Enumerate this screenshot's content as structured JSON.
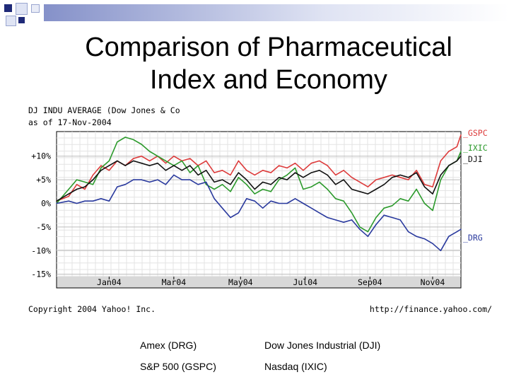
{
  "slide": {
    "title_line1": "Comparison of Pharmaceutical",
    "title_line2": "Index and Economy"
  },
  "legend_explain": [
    [
      "Amex (DRG)",
      "Dow Jones Industrial (DJI)"
    ],
    [
      "S&P 500 (GSPC)",
      "Nasdaq (IXIC)"
    ]
  ],
  "chart_data": {
    "type": "line",
    "header_line1": "DJ INDU AVERAGE (Dow Jones & Co",
    "header_line2": "as of 17-Nov-2004",
    "footer_left": "Copyright 2004 Yahoo! Inc.",
    "footer_right": "http://finance.yahoo.com/",
    "y_ticks": [
      {
        "v": 10,
        "label": "+10%"
      },
      {
        "v": 5,
        "label": "+5%"
      },
      {
        "v": 0,
        "label": "0%"
      },
      {
        "v": -5,
        "label": "-5%"
      },
      {
        "v": -10,
        "label": "-10%"
      },
      {
        "v": -15,
        "label": "-15%"
      }
    ],
    "ylim": [
      -15.5,
      15.2
    ],
    "xlim": [
      0,
      100
    ],
    "x_ticks": [
      {
        "x": 13,
        "label": "Jan04"
      },
      {
        "x": 29,
        "label": "Mar04"
      },
      {
        "x": 45.5,
        "label": "May04"
      },
      {
        "x": 61.5,
        "label": "Jul04"
      },
      {
        "x": 77.5,
        "label": "Sep04"
      },
      {
        "x": 93,
        "label": "Nov04"
      }
    ],
    "series": [
      {
        "name": "GSPC",
        "label": "_GSPC",
        "color": "#dd3b3b",
        "x": [
          0,
          3,
          5,
          7,
          9,
          11,
          13,
          15,
          17,
          19,
          21,
          23,
          25,
          27,
          29,
          31,
          33,
          35,
          37,
          39,
          41,
          43,
          45,
          47,
          49,
          51,
          53,
          55,
          57,
          59,
          61,
          63,
          65,
          67,
          69,
          71,
          73,
          75,
          77,
          79,
          81,
          83,
          85,
          87,
          89,
          91,
          93,
          95,
          97,
          99,
          100
        ],
        "y": [
          0.5,
          1.5,
          4,
          3,
          6,
          8,
          7,
          9,
          8,
          9.5,
          10,
          9,
          10,
          8.5,
          10,
          9,
          9.5,
          8,
          9,
          6.5,
          7,
          6,
          9,
          7,
          6,
          7,
          6.5,
          8,
          7.5,
          8.5,
          7,
          8.5,
          9,
          8,
          6,
          7,
          5.5,
          4.5,
          3.5,
          5,
          5.5,
          6,
          5.5,
          5,
          7,
          4,
          3.5,
          9,
          11,
          12,
          14.5
        ]
      },
      {
        "name": "IXIC",
        "label": "_IXIC",
        "color": "#2c9a2c",
        "x": [
          0,
          3,
          5,
          7,
          9,
          11,
          13,
          15,
          17,
          19,
          21,
          23,
          25,
          27,
          29,
          31,
          33,
          35,
          37,
          39,
          41,
          43,
          45,
          47,
          49,
          51,
          53,
          55,
          57,
          59,
          61,
          63,
          65,
          67,
          69,
          71,
          73,
          75,
          77,
          79,
          81,
          83,
          85,
          87,
          89,
          91,
          93,
          95,
          97,
          99,
          100
        ],
        "y": [
          0,
          3,
          5,
          4.5,
          4,
          7.5,
          9,
          13,
          14,
          13.5,
          12.5,
          11,
          10,
          9,
          8,
          9,
          6.5,
          8,
          4,
          3,
          4,
          2.5,
          5.5,
          4,
          2,
          3,
          2.5,
          5,
          6,
          7.5,
          3,
          3.5,
          4.5,
          3,
          1,
          0.5,
          -2,
          -5,
          -6,
          -3,
          -1,
          -0.5,
          1,
          0.5,
          3,
          0,
          -1.5,
          5,
          8,
          9,
          11
        ]
      },
      {
        "name": "DJI",
        "label": "_DJI",
        "color": "#111111",
        "x": [
          0,
          3,
          5,
          7,
          9,
          11,
          13,
          15,
          17,
          19,
          21,
          23,
          25,
          27,
          29,
          31,
          33,
          35,
          37,
          39,
          41,
          43,
          45,
          47,
          49,
          51,
          53,
          55,
          57,
          59,
          61,
          63,
          65,
          67,
          69,
          71,
          73,
          75,
          77,
          79,
          81,
          83,
          85,
          87,
          89,
          91,
          93,
          95,
          97,
          99,
          100
        ],
        "y": [
          0.5,
          2,
          3,
          3.5,
          5,
          7,
          8,
          9,
          8,
          9,
          8.5,
          8,
          8.5,
          7,
          8,
          7,
          8,
          6,
          7,
          4.5,
          5,
          4,
          6.5,
          5,
          3,
          4.5,
          4,
          5.5,
          5,
          6.5,
          5.5,
          6.5,
          7,
          6,
          4,
          5,
          3,
          2.5,
          2,
          3,
          4,
          5.5,
          6,
          5.5,
          6.5,
          3.5,
          2,
          6,
          8,
          9,
          10
        ]
      },
      {
        "name": "DRG",
        "label": "_DRG",
        "color": "#2a3a9e",
        "x": [
          0,
          3,
          5,
          7,
          9,
          11,
          13,
          15,
          17,
          19,
          21,
          23,
          25,
          27,
          29,
          31,
          33,
          35,
          37,
          39,
          41,
          43,
          45,
          47,
          49,
          51,
          53,
          55,
          57,
          59,
          61,
          63,
          65,
          67,
          69,
          71,
          73,
          75,
          77,
          79,
          81,
          83,
          85,
          87,
          89,
          91,
          93,
          95,
          97,
          99,
          100
        ],
        "y": [
          0,
          0.5,
          0,
          0.5,
          0.5,
          1,
          0.5,
          3.5,
          4,
          5,
          5,
          4.5,
          5,
          4,
          6,
          5,
          5,
          4,
          4.5,
          1,
          -1,
          -3,
          -2,
          1,
          0.5,
          -1,
          0.5,
          0,
          0,
          1,
          0,
          -1,
          -2,
          -3,
          -3.5,
          -4,
          -3.5,
          -5.5,
          -7,
          -4.5,
          -2.5,
          -3,
          -3.5,
          -6,
          -7,
          -7.5,
          -8.5,
          -10,
          -7,
          -6,
          -5.5
        ]
      }
    ]
  }
}
